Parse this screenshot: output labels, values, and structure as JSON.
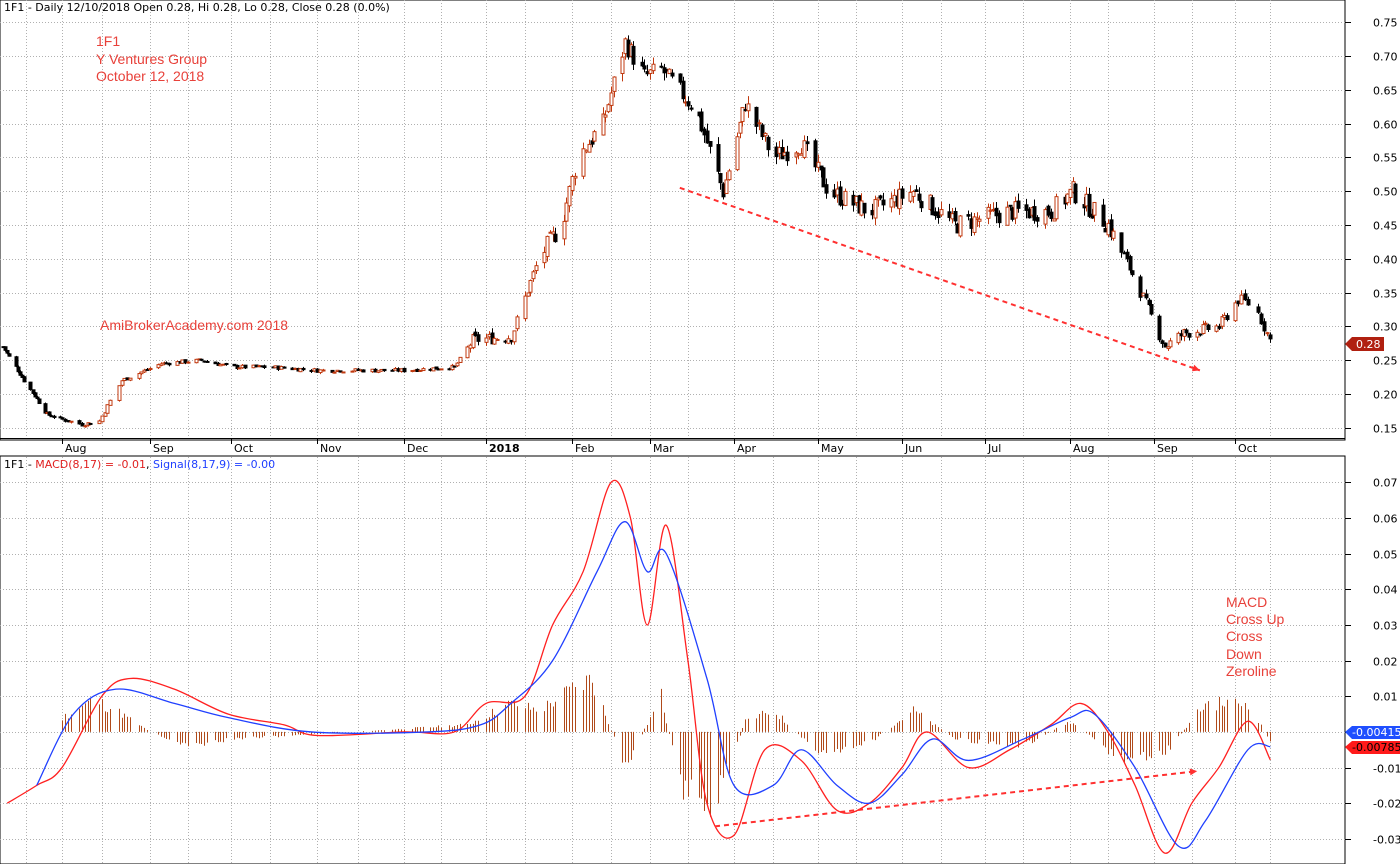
{
  "colors": {
    "background": "#ffffff",
    "grid": "#b0b0b0",
    "candle_up_border": "#c0390f",
    "candle_up_fill": "#ffffff",
    "candle_down": "#000000",
    "macd_line": "#ff2020",
    "signal_line": "#2040ff",
    "histogram": "#b04a1a",
    "annotation": "#e8413a",
    "trendline": "#ff3030",
    "price_tag": "#b02010",
    "signal_tag": "#1f4fff",
    "macd_tag": "#ff1a1a"
  },
  "header": {
    "price_panel": "1F1 - Daily 12/10/2018 Open 0.28, Hi 0.28, Lo 0.28, Close 0.28 (0.0%)",
    "macd_prefix": "1F1 - ",
    "macd_label": "MACD(8,17) = -0.01",
    "signal_sep": ", ",
    "signal_label": "Signal(8,17,9) = -0.00"
  },
  "annotations": {
    "title_lines": [
      "1F1",
      "Y Ventures Group",
      "October 12, 2018"
    ],
    "watermark": "AmiBrokerAcademy.com  2018",
    "macd_note_lines": [
      "MACD",
      "Cross Up",
      "Cross",
      "Down",
      "Zeroline"
    ]
  },
  "tags": {
    "last_price": "0.28",
    "signal_value": "-0.00415",
    "macd_value": "-0.00785"
  },
  "chart_data": [
    {
      "type": "candlestick",
      "title": "1F1 - Daily 12/10/2018 Open 0.28, Hi 0.28, Lo 0.28, Close 0.28 (0.0%)",
      "x_tick_labels": [
        "Aug",
        "Sep",
        "Oct",
        "Nov",
        "Dec",
        "2018",
        "Feb",
        "Mar",
        "Apr",
        "May",
        "Jun",
        "Jul",
        "Aug",
        "Sep",
        "Oct"
      ],
      "x_range": [
        "2017-07-04",
        "2018-10-12"
      ],
      "y_ticks": [
        "0.15",
        "0.20",
        "0.25",
        "0.30",
        "0.35",
        "0.40",
        "0.45",
        "0.50",
        "0.55",
        "0.60",
        "0.65",
        "0.70",
        "0.75"
      ],
      "ylim": [
        0.135,
        0.765
      ],
      "grid": true,
      "approximate_close_path": [
        [
          "2017-07-04",
          0.27
        ],
        [
          "2017-07-14",
          0.22
        ],
        [
          "2017-07-25",
          0.17
        ],
        [
          "2017-08-08",
          0.155
        ],
        [
          "2017-08-14",
          0.16
        ],
        [
          "2017-08-22",
          0.22
        ],
        [
          "2017-09-05",
          0.245
        ],
        [
          "2017-09-20",
          0.25
        ],
        [
          "2017-10-01",
          0.24
        ],
        [
          "2017-10-15",
          0.24
        ],
        [
          "2017-11-01",
          0.235
        ],
        [
          "2017-12-01",
          0.235
        ],
        [
          "2017-12-20",
          0.24
        ],
        [
          "2017-12-27",
          0.28
        ],
        [
          "2018-01-10",
          0.285
        ],
        [
          "2018-01-20",
          0.4
        ],
        [
          "2018-01-28",
          0.45
        ],
        [
          "2018-02-03",
          0.55
        ],
        [
          "2018-02-12",
          0.6
        ],
        [
          "2018-02-20",
          0.72
        ],
        [
          "2018-02-27",
          0.67
        ],
        [
          "2018-03-05",
          0.68
        ],
        [
          "2018-03-18",
          0.62
        ],
        [
          "2018-03-28",
          0.5
        ],
        [
          "2018-04-05",
          0.63
        ],
        [
          "2018-04-15",
          0.55
        ],
        [
          "2018-04-25",
          0.57
        ],
        [
          "2018-05-05",
          0.5
        ],
        [
          "2018-05-20",
          0.47
        ],
        [
          "2018-06-05",
          0.5
        ],
        [
          "2018-06-20",
          0.45
        ],
        [
          "2018-07-10",
          0.47
        ],
        [
          "2018-07-25",
          0.47
        ],
        [
          "2018-08-02",
          0.5
        ],
        [
          "2018-08-15",
          0.45
        ],
        [
          "2018-08-25",
          0.37
        ],
        [
          "2018-09-05",
          0.27
        ],
        [
          "2018-09-12",
          0.29
        ],
        [
          "2018-09-25",
          0.3
        ],
        [
          "2018-10-02",
          0.34
        ],
        [
          "2018-10-07",
          0.33
        ],
        [
          "2018-10-12",
          0.28
        ]
      ],
      "trendline": {
        "from": [
          "2018-03-12",
          0.505
        ],
        "to": [
          "2018-09-18",
          0.235
        ],
        "style": "dashed"
      },
      "last_close": 0.28
    },
    {
      "type": "line",
      "title": "1F1 - MACD(8,17) = -0.01, Signal(8,17,9) = -0.00",
      "x_tick_labels": [
        "Aug",
        "Sep",
        "Oct",
        "Nov",
        "Dec",
        "2018",
        "Feb",
        "Mar",
        "Apr",
        "May",
        "Jun",
        "Jul",
        "Aug",
        "Sep",
        "Oct"
      ],
      "y_ticks": [
        "-0.03",
        "-0.02",
        "-0.01",
        "0.00",
        "0.01",
        "0.02",
        "0.03",
        "0.04",
        "0.05",
        "0.06",
        "0.07"
      ],
      "ylim": [
        -0.0365,
        0.0735
      ],
      "grid": true,
      "series": [
        {
          "name": "MACD(8,17)",
          "color": "#ff2020",
          "points": [
            [
              "2017-07-06",
              -0.02
            ],
            [
              "2017-07-20",
              -0.015
            ],
            [
              "2017-08-01",
              -0.01
            ],
            [
              "2017-08-15",
              0.01
            ],
            [
              "2017-08-25",
              0.015
            ],
            [
              "2017-09-10",
              0.012
            ],
            [
              "2017-09-30",
              0.005
            ],
            [
              "2017-10-20",
              0.002
            ],
            [
              "2017-11-01",
              -0.001
            ],
            [
              "2017-12-01",
              0.0
            ],
            [
              "2017-12-20",
              0.0
            ],
            [
              "2018-01-01",
              0.008
            ],
            [
              "2018-01-15",
              0.01
            ],
            [
              "2018-01-25",
              0.03
            ],
            [
              "2018-02-05",
              0.045
            ],
            [
              "2018-02-15",
              0.07
            ],
            [
              "2018-02-22",
              0.06
            ],
            [
              "2018-02-28",
              0.03
            ],
            [
              "2018-03-07",
              0.058
            ],
            [
              "2018-03-15",
              0.02
            ],
            [
              "2018-03-22",
              -0.02
            ],
            [
              "2018-04-01",
              -0.029
            ],
            [
              "2018-04-12",
              -0.005
            ],
            [
              "2018-04-25",
              -0.008
            ],
            [
              "2018-05-08",
              -0.022
            ],
            [
              "2018-05-20",
              -0.02
            ],
            [
              "2018-06-01",
              -0.01
            ],
            [
              "2018-06-10",
              0.0
            ],
            [
              "2018-06-25",
              -0.01
            ],
            [
              "2018-07-10",
              -0.005
            ],
            [
              "2018-07-25",
              0.002
            ],
            [
              "2018-08-05",
              0.008
            ],
            [
              "2018-08-15",
              0.0
            ],
            [
              "2018-08-25",
              -0.015
            ],
            [
              "2018-09-05",
              -0.034
            ],
            [
              "2018-09-15",
              -0.02
            ],
            [
              "2018-09-25",
              -0.01
            ],
            [
              "2018-10-05",
              0.003
            ],
            [
              "2018-10-12",
              -0.00785
            ]
          ]
        },
        {
          "name": "Signal(8,17,9)",
          "color": "#2040ff",
          "points": [
            [
              "2017-07-20",
              -0.015
            ],
            [
              "2017-08-05",
              0.005
            ],
            [
              "2017-08-20",
              0.012
            ],
            [
              "2017-09-10",
              0.008
            ],
            [
              "2017-09-30",
              0.004
            ],
            [
              "2017-10-30",
              0.0
            ],
            [
              "2017-12-10",
              0.0
            ],
            [
              "2017-12-30",
              0.002
            ],
            [
              "2018-01-10",
              0.008
            ],
            [
              "2018-01-25",
              0.02
            ],
            [
              "2018-02-10",
              0.045
            ],
            [
              "2018-02-20",
              0.059
            ],
            [
              "2018-02-28",
              0.045
            ],
            [
              "2018-03-07",
              0.05
            ],
            [
              "2018-03-22",
              0.015
            ],
            [
              "2018-04-01",
              -0.015
            ],
            [
              "2018-04-15",
              -0.015
            ],
            [
              "2018-04-25",
              -0.005
            ],
            [
              "2018-05-08",
              -0.015
            ],
            [
              "2018-05-20",
              -0.02
            ],
            [
              "2018-06-01",
              -0.012
            ],
            [
              "2018-06-12",
              -0.002
            ],
            [
              "2018-06-25",
              -0.008
            ],
            [
              "2018-07-15",
              -0.002
            ],
            [
              "2018-08-01",
              0.004
            ],
            [
              "2018-08-10",
              0.005
            ],
            [
              "2018-08-25",
              -0.01
            ],
            [
              "2018-09-10",
              -0.032
            ],
            [
              "2018-09-20",
              -0.025
            ],
            [
              "2018-10-05",
              -0.005
            ],
            [
              "2018-10-12",
              -0.00415
            ]
          ]
        }
      ],
      "histogram": {
        "name": "MACD - Signal",
        "points": [
          [
            "2017-08-01",
            0.004
          ],
          [
            "2017-08-12",
            0.009
          ],
          [
            "2017-08-20",
            0.006
          ],
          [
            "2017-09-01",
            0.0
          ],
          [
            "2017-09-15",
            -0.004
          ],
          [
            "2017-10-01",
            -0.002
          ],
          [
            "2017-12-25",
            0.002
          ],
          [
            "2018-01-10",
            0.008
          ],
          [
            "2018-01-20",
            0.006
          ],
          [
            "2018-02-01",
            0.012
          ],
          [
            "2018-02-08",
            0.015
          ],
          [
            "2018-02-20",
            -0.01
          ],
          [
            "2018-03-05",
            0.01
          ],
          [
            "2018-03-12",
            -0.015
          ],
          [
            "2018-03-25",
            -0.02
          ],
          [
            "2018-04-05",
            0.003
          ],
          [
            "2018-04-15",
            0.006
          ],
          [
            "2018-05-01",
            -0.006
          ],
          [
            "2018-05-20",
            -0.003
          ],
          [
            "2018-06-05",
            0.006
          ],
          [
            "2018-06-20",
            -0.002
          ],
          [
            "2018-07-15",
            -0.004
          ],
          [
            "2018-08-01",
            0.003
          ],
          [
            "2018-08-20",
            -0.008
          ],
          [
            "2018-09-05",
            -0.006
          ],
          [
            "2018-09-20",
            0.008
          ],
          [
            "2018-10-05",
            0.008
          ],
          [
            "2018-10-12",
            -0.003
          ]
        ]
      },
      "trendline": {
        "from": [
          "2018-03-25",
          -0.0265
        ],
        "to": [
          "2018-09-17",
          -0.011
        ],
        "style": "dashed"
      }
    }
  ]
}
